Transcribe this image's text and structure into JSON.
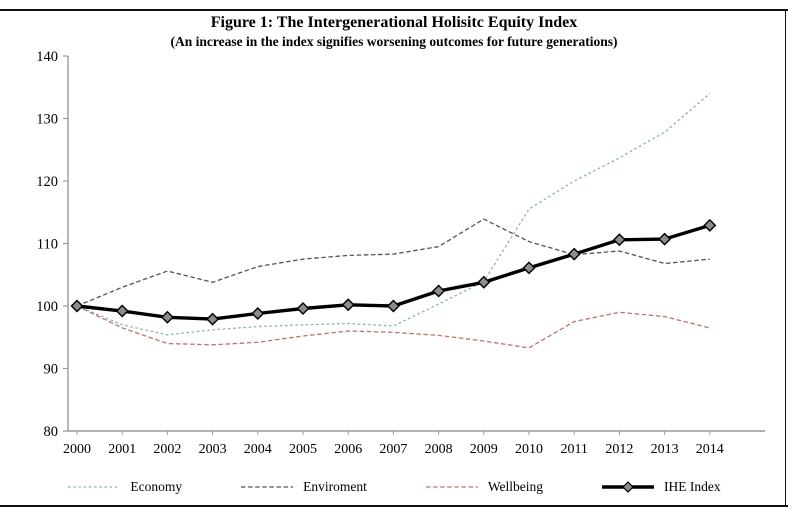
{
  "figure": {
    "title": "Figure 1: The Intergenerational Holisitc Equity Index",
    "subtitle": "(An increase in the index signifies worsening outcomes for future generations)"
  },
  "chart_data": {
    "type": "line",
    "title": "Figure 1: The Intergenerational Holisitc Equity Index",
    "subtitle": "(An increase in the index signifies worsening outcomes for future generations)",
    "x": [
      2000,
      2001,
      2002,
      2003,
      2004,
      2005,
      2006,
      2007,
      2008,
      2009,
      2010,
      2011,
      2012,
      2013,
      2014
    ],
    "series": [
      {
        "name": "Economy",
        "color": "#86b5b1",
        "line_style": "dotted",
        "marker": "none",
        "values": [
          100,
          97.0,
          95.4,
          96.2,
          96.7,
          97.0,
          97.2,
          96.8,
          100.3,
          103.9,
          115.5,
          120.0,
          123.7,
          127.8,
          134.0
        ]
      },
      {
        "name": "Enviroment",
        "color": "#55554b",
        "line_style": "dashed",
        "marker": "none",
        "values": [
          100,
          103.0,
          105.6,
          103.8,
          106.3,
          107.5,
          108.1,
          108.3,
          109.5,
          113.9,
          110.3,
          108.2,
          108.8,
          106.8,
          107.5
        ]
      },
      {
        "name": "Wellbeing",
        "color": "#bc7370",
        "line_style": "dashed",
        "marker": "none",
        "values": [
          100,
          96.5,
          94.0,
          93.8,
          94.2,
          95.2,
          96.0,
          95.8,
          95.3,
          94.4,
          93.3,
          97.5,
          99.0,
          98.3,
          96.5
        ]
      },
      {
        "name": "IHE Index",
        "color": "#000000",
        "line_style": "solid",
        "marker": "diamond",
        "marker_fill": "#8c8c8c",
        "values": [
          100,
          99.2,
          98.2,
          97.9,
          98.8,
          99.6,
          100.2,
          100.0,
          102.4,
          103.8,
          106.1,
          108.3,
          110.6,
          110.7,
          112.9
        ]
      }
    ],
    "ylim": [
      80,
      140
    ],
    "yticks": [
      80,
      90,
      100,
      110,
      120,
      130,
      140
    ],
    "xlabel": "",
    "ylabel": "",
    "grid": false,
    "legend_position": "bottom",
    "axis_color": "#9a9a9a",
    "tick_label_color": "#000000"
  }
}
